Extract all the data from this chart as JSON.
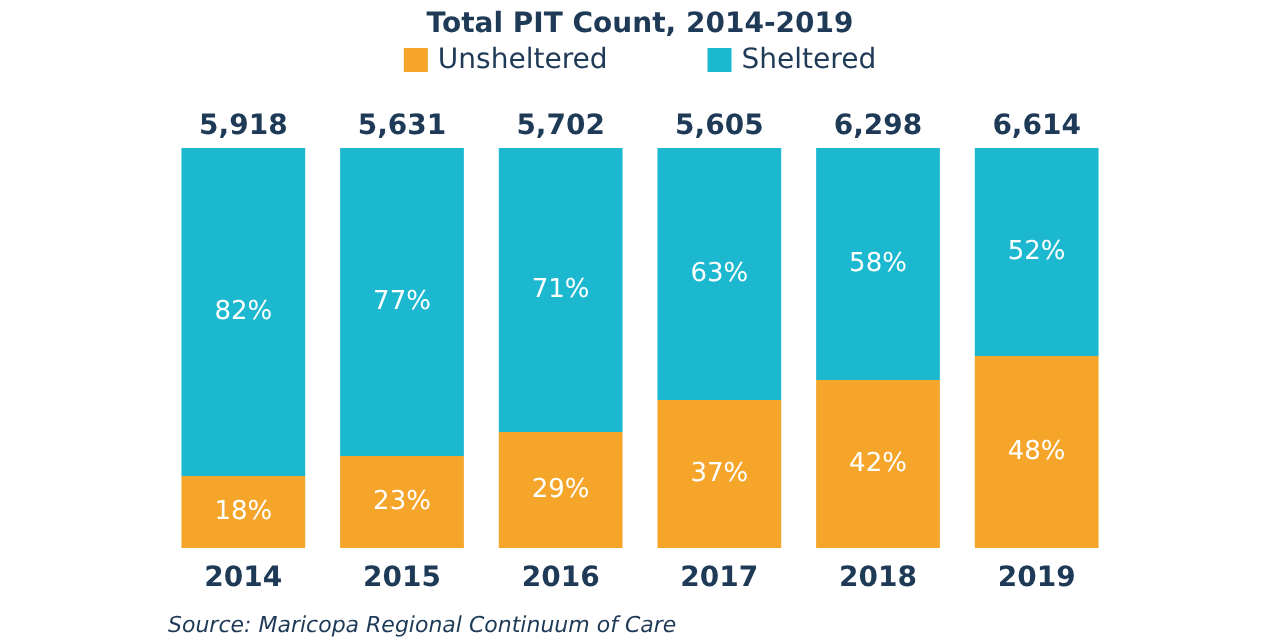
{
  "chart_data": {
    "type": "bar",
    "title": "Total PIT Count, 2014-2019",
    "categories": [
      "2014",
      "2015",
      "2016",
      "2017",
      "2018",
      "2019"
    ],
    "stacked": true,
    "legend": "top",
    "series": [
      {
        "name": "Unsheltered",
        "color": "#f5a52a",
        "values": [
          18,
          23,
          29,
          37,
          42,
          48
        ],
        "value_labels": [
          "18%",
          "23%",
          "29%",
          "37%",
          "42%",
          "48%"
        ]
      },
      {
        "name": "Sheltered",
        "color": "#1bb8cf",
        "values": [
          82,
          77,
          71,
          63,
          58,
          52
        ],
        "value_labels": [
          "82%",
          "77%",
          "71%",
          "63%",
          "58%",
          "52%"
        ]
      }
    ],
    "annotations": [
      "Source: Maricopa Regional Continuum of Care",
      {
        "text": "5,918",
        "x": "2014",
        "y": 100
      },
      {
        "text": "5,631",
        "x": "2015",
        "y": 100
      },
      {
        "text": "5,702",
        "x": "2016",
        "y": 100
      },
      {
        "text": "5,605",
        "x": "2017",
        "y": 100
      },
      {
        "text": "6,298",
        "x": "2018",
        "y": 100
      },
      {
        "text": "6,614",
        "x": "2019",
        "y": 100
      }
    ]
  }
}
